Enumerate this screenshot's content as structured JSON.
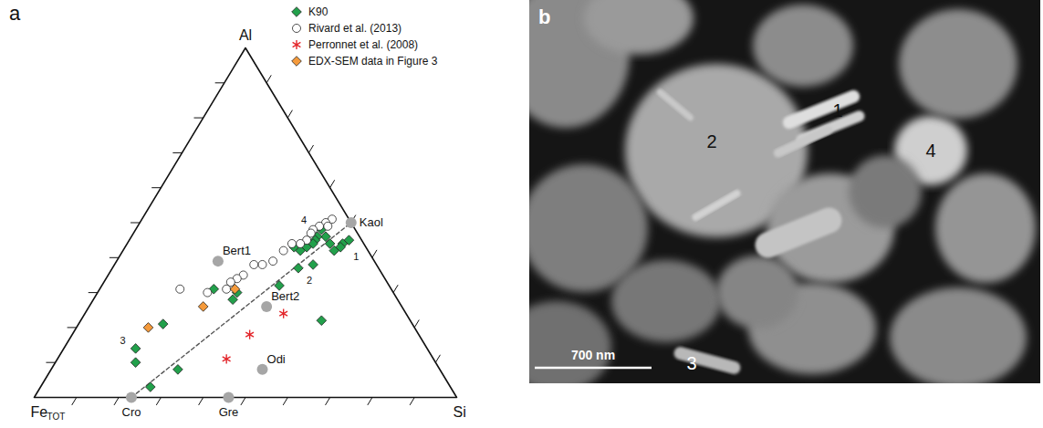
{
  "chart_data": [
    {
      "type": "ternary",
      "panel_label": "a",
      "apices": {
        "top": "Al",
        "left": {
          "text": "Fe",
          "subscript": "TOT"
        },
        "right": "Si"
      },
      "lim": [
        0,
        100
      ],
      "ticks": [
        10,
        20,
        30,
        40,
        50,
        60,
        70,
        80,
        90
      ],
      "tick_labels": false,
      "legend": "top-right",
      "series": [
        {
          "name": "K90",
          "color": "#22a04b",
          "marker": "diamond",
          "points": [
            {
              "Al": 45,
              "Si": 52,
              "Fe": 3,
              "label": "1"
            },
            {
              "Al": 38,
              "Si": 47,
              "Fe": 15,
              "label": "2"
            },
            {
              "Al": 14,
              "Si": 17,
              "Fe": 69,
              "label": "3"
            },
            {
              "Al": 46,
              "Si": 46,
              "Fe": 8,
              "label": "4"
            },
            {
              "Al": 44,
              "Si": 51,
              "Fe": 5
            },
            {
              "Al": 43,
              "Si": 51,
              "Fe": 6
            },
            {
              "Al": 42,
              "Si": 50,
              "Fe": 8
            },
            {
              "Al": 44,
              "Si": 48,
              "Fe": 8
            },
            {
              "Al": 46,
              "Si": 44,
              "Fe": 10
            },
            {
              "Al": 45,
              "Si": 44,
              "Fe": 11
            },
            {
              "Al": 44,
              "Si": 44,
              "Fe": 12
            },
            {
              "Al": 43,
              "Si": 43,
              "Fe": 14
            },
            {
              "Al": 42,
              "Si": 42,
              "Fe": 16
            },
            {
              "Al": 43,
              "Si": 40,
              "Fe": 17
            },
            {
              "Al": 37,
              "Si": 44,
              "Fe": 19
            },
            {
              "Al": 48,
              "Si": 44,
              "Fe": 8
            },
            {
              "Al": 32,
              "Si": 42,
              "Fe": 26
            },
            {
              "Al": 30,
              "Si": 33,
              "Fe": 37
            },
            {
              "Al": 28,
              "Si": 33,
              "Fe": 39
            },
            {
              "Al": 31,
              "Si": 27,
              "Fe": 42
            },
            {
              "Al": 22,
              "Si": 57,
              "Fe": 21
            },
            {
              "Al": 21,
              "Si": 20,
              "Fe": 59
            },
            {
              "Al": 10,
              "Si": 19,
              "Fe": 71
            },
            {
              "Al": 8,
              "Si": 30,
              "Fe": 62
            },
            {
              "Al": 3,
              "Si": 26,
              "Fe": 71
            }
          ]
        },
        {
          "name": "Rivard et al. (2013)",
          "color": "#ffffff",
          "marker": "circle",
          "points": [
            {
              "Al": 51,
              "Si": 45,
              "Fe": 4
            },
            {
              "Al": 50,
              "Si": 44,
              "Fe": 6
            },
            {
              "Al": 49,
              "Si": 43,
              "Fe": 8
            },
            {
              "Al": 49,
              "Si": 45,
              "Fe": 6
            },
            {
              "Al": 48,
              "Si": 42,
              "Fe": 10
            },
            {
              "Al": 47,
              "Si": 42,
              "Fe": 11
            },
            {
              "Al": 45,
              "Si": 42,
              "Fe": 13
            },
            {
              "Al": 44,
              "Si": 41,
              "Fe": 15
            },
            {
              "Al": 44,
              "Si": 39,
              "Fe": 17
            },
            {
              "Al": 42,
              "Si": 38,
              "Fe": 20
            },
            {
              "Al": 39,
              "Si": 37,
              "Fe": 24
            },
            {
              "Al": 38,
              "Si": 35,
              "Fe": 27
            },
            {
              "Al": 38,
              "Si": 33,
              "Fe": 29
            },
            {
              "Al": 35,
              "Si": 32,
              "Fe": 33
            },
            {
              "Al": 34,
              "Si": 31,
              "Fe": 35
            },
            {
              "Al": 33,
              "Si": 30,
              "Fe": 37
            },
            {
              "Al": 31,
              "Si": 30,
              "Fe": 39
            },
            {
              "Al": 30,
              "Si": 26,
              "Fe": 44
            },
            {
              "Al": 31,
              "Si": 19,
              "Fe": 50
            }
          ]
        },
        {
          "name": "Perronnet et al. (2008)",
          "color": "#e3262b",
          "marker": "asterisk",
          "points": [
            {
              "Al": 24,
              "Si": 47,
              "Fe": 29
            },
            {
              "Al": 18,
              "Si": 42,
              "Fe": 40
            },
            {
              "Al": 11,
              "Si": 40,
              "Fe": 49
            }
          ]
        },
        {
          "name": "EDX-SEM data in Figure 3",
          "color": "#f59a3b",
          "marker": "diamond",
          "points": [
            {
              "Al": 31,
              "Si": 32,
              "Fe": 37
            },
            {
              "Al": 26,
              "Si": 27,
              "Fe": 47
            },
            {
              "Al": 20,
              "Si": 17,
              "Fe": 63
            }
          ]
        }
      ],
      "reference_points": {
        "color": "#a6a6a6",
        "marker": "circle",
        "points": [
          {
            "name": "Kaol",
            "Al": 50,
            "Si": 50,
            "Fe": 0
          },
          {
            "name": "Bert1",
            "Al": 39,
            "Si": 24,
            "Fe": 37
          },
          {
            "name": "Bert2",
            "Al": 26,
            "Si": 42,
            "Fe": 32
          },
          {
            "name": "Odi",
            "Al": 8,
            "Si": 50,
            "Fe": 42
          },
          {
            "name": "Cro",
            "Al": 0,
            "Si": 23,
            "Fe": 77
          },
          {
            "name": "Gre",
            "Al": 0,
            "Si": 46,
            "Fe": 54
          }
        ]
      },
      "tie_line": {
        "from": "Cro",
        "to": "Kaol",
        "line_style": "dashed"
      }
    },
    {
      "type": "image",
      "panel_label": "b",
      "labels": [
        "1",
        "2",
        "3",
        "4"
      ],
      "scale_bar": "700 nm"
    }
  ]
}
